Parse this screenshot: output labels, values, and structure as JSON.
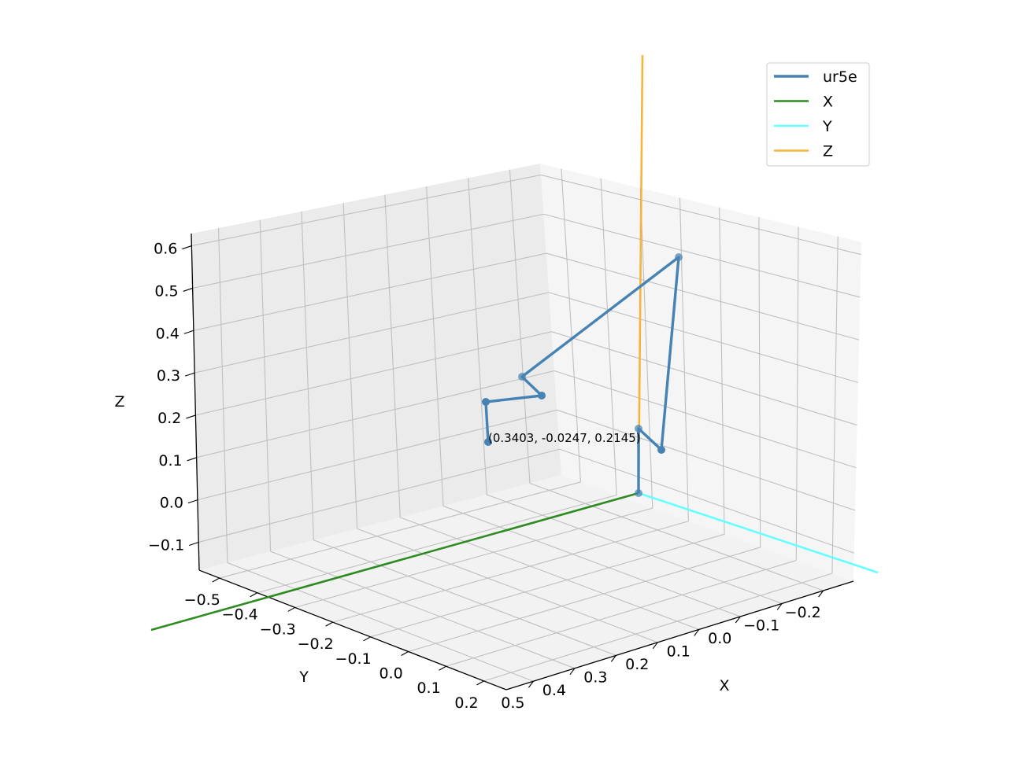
{
  "chart_data": {
    "type": "line",
    "projection": "3d",
    "grid": true,
    "legend_placement": "top-right",
    "axes": {
      "x": {
        "label": "X",
        "ticks": [
          "−0.2",
          "−0.1",
          "0.0",
          "0.1",
          "0.2",
          "0.3",
          "0.4",
          "0.5"
        ]
      },
      "y": {
        "label": "Y",
        "ticks": [
          "−0.5",
          "−0.4",
          "−0.3",
          "−0.2",
          "−0.1",
          "0.0",
          "0.1",
          "0.2"
        ]
      },
      "z": {
        "label": "Z",
        "ticks": [
          "−0.1",
          "0.0",
          "0.1",
          "0.2",
          "0.3",
          "0.4",
          "0.5",
          "0.6"
        ]
      }
    },
    "series": [
      {
        "name": "ur5e",
        "color": "#4682b4",
        "markers": true
      },
      {
        "name": "X",
        "color": "#2e8b22"
      },
      {
        "name": "Y",
        "color": "#66ffff"
      },
      {
        "name": "Z",
        "color": "#f7b43a"
      }
    ],
    "annotation": "(0.3403, -0.0247, 0.2145)"
  }
}
